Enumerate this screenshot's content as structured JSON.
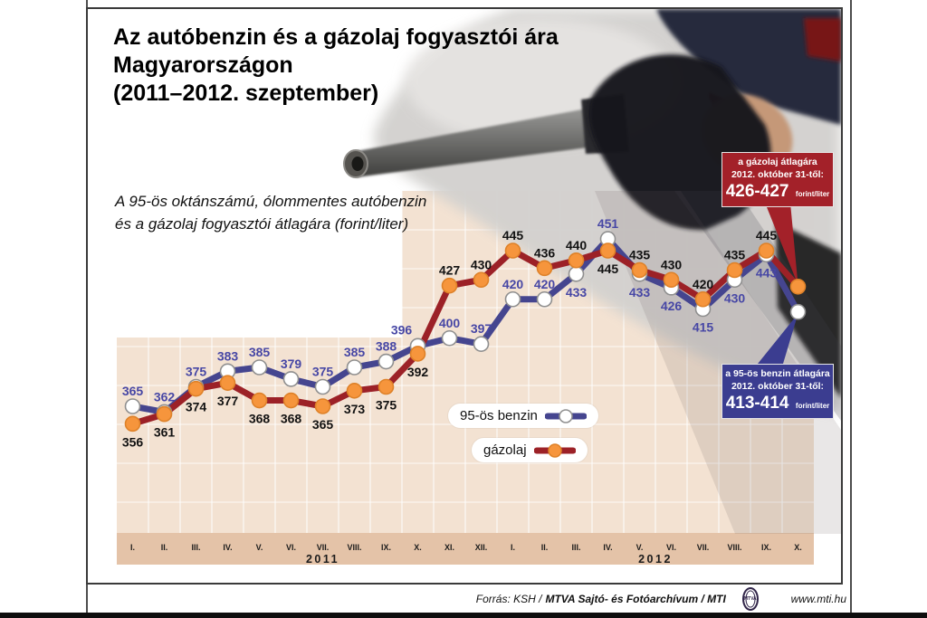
{
  "title_lines": [
    "Az autóbenzin és a gázolaj fogyasztói ára",
    "Magyarországon",
    "(2011–2012. szeptember)"
  ],
  "subtitle_lines": [
    "A 95-ös oktánszámú, ólommentes autóbenzin",
    "és a gázolaj fogyasztói átlagára (forint/liter)"
  ],
  "chart_data": {
    "type": "line",
    "title": "Az autóbenzin és a gázolaj fogyasztói ára Magyarországon (2011–2012. szeptember)",
    "unit": "forint/liter",
    "categories": [
      "I.",
      "II.",
      "III.",
      "IV.",
      "V.",
      "VI.",
      "VII.",
      "VIII.",
      "IX.",
      "X.",
      "XI.",
      "XII.",
      "I.",
      "II.",
      "III.",
      "IV.",
      "V.",
      "VI.",
      "VII.",
      "VIII.",
      "IX.",
      "X."
    ],
    "year_groups": [
      {
        "label": "2011",
        "months": 12,
        "center_index": 6.5
      },
      {
        "label": "2012",
        "months": 10,
        "center_index": 17
      }
    ],
    "ylim": [
      350,
      460
    ],
    "grid": true,
    "legend_position": "center-right",
    "series": [
      {
        "name": "95-ös benzin",
        "line_color": "#45458f",
        "marker_fill": "#ffffff",
        "marker_stroke": "#8f8f8f",
        "label_color": "#4747a5",
        "values": [
          365,
          362,
          375,
          383,
          385,
          379,
          375,
          385,
          388,
          396,
          400,
          397,
          420,
          420,
          433,
          451,
          433,
          426,
          415,
          430,
          443,
          413.5
        ],
        "label_side": [
          "a",
          "a",
          "a",
          "a",
          "a",
          "a",
          "a",
          "a",
          "a",
          "al",
          "a",
          "a",
          "a",
          "a",
          "b",
          "a",
          "b",
          "b",
          "b",
          "b",
          "b",
          ""
        ]
      },
      {
        "name": "gázolaj",
        "line_color": "#9c2127",
        "marker_fill": "#f6953c",
        "marker_stroke": "#de8128",
        "label_color": "#121212",
        "values": [
          356,
          361,
          374,
          377,
          368,
          368,
          365,
          373,
          375,
          392,
          427,
          430,
          445,
          436,
          440,
          445,
          435,
          430,
          420,
          435,
          445,
          426.5
        ],
        "label_side": [
          "b",
          "b",
          "b",
          "b",
          "b",
          "b",
          "b",
          "b",
          "b",
          "b",
          "a",
          "a",
          "a",
          "a",
          "a",
          "b",
          "a",
          "a",
          "a",
          "a",
          "a",
          ""
        ]
      }
    ]
  },
  "callouts": {
    "gazolaj": {
      "line1": "a gázolaj átlagára",
      "line2": "2012. október 31-től:",
      "value": "426-427",
      "unit": "forint/liter",
      "bg": "#a32129"
    },
    "benzin": {
      "line1": "a 95-ös benzin átlagára",
      "line2": "2012. október 31-től:",
      "value": "413-414",
      "unit": "forint/liter",
      "bg": "#3b3d90"
    }
  },
  "footer": {
    "source_prefix": "Forrás: KSH /",
    "source_bold": "MTVA Sajtó- és Fotóarchívum / MTI",
    "mtva_logo_text": "MTVA",
    "url": "www.mti.hu"
  },
  "colors": {
    "plot_bg": "#f3e2d2",
    "axis_strip": "#e4c3a8",
    "grid": "#ffffff",
    "month_label": "#1b1b1b",
    "year_label": "#1b1b1b"
  }
}
